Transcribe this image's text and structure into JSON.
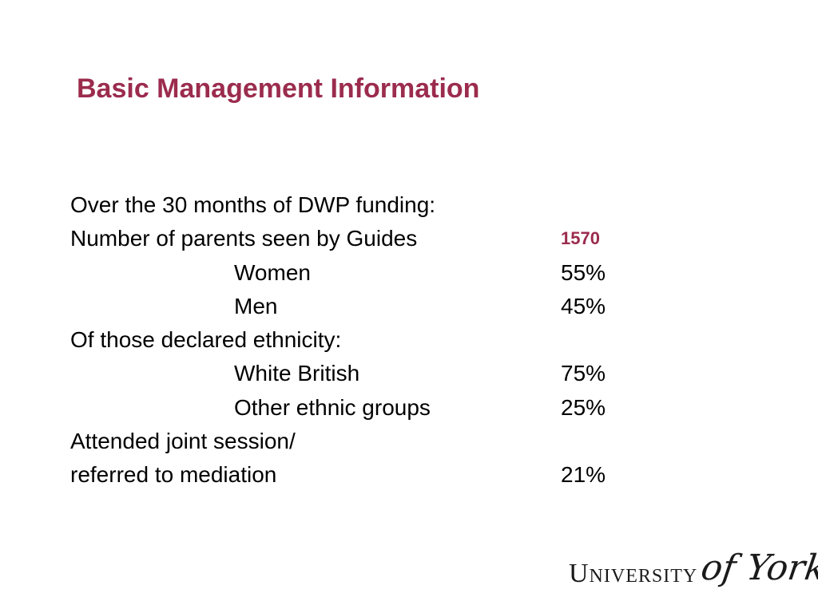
{
  "slide": {
    "title": "Basic Management Information",
    "accent_color": "#9b2c4e"
  },
  "stats": {
    "intro": "Over the 30 months of DWP funding:",
    "parents_label": "Number of parents seen by Guides",
    "parents_value": "1570",
    "women_label": "Women",
    "women_value": "55%",
    "men_label": "Men",
    "men_value": "45%",
    "ethnicity_label": "Of those declared ethnicity:",
    "white_british_label": "White British",
    "white_british_value": "75%",
    "other_ethnic_label": "Other ethnic groups",
    "other_ethnic_value": "25%",
    "joint_session_label_line1": "Attended joint session/",
    "joint_session_label_line2": "referred to mediation",
    "joint_session_value": "21%"
  },
  "logo": {
    "university_text": "University",
    "script_text": "of York"
  }
}
